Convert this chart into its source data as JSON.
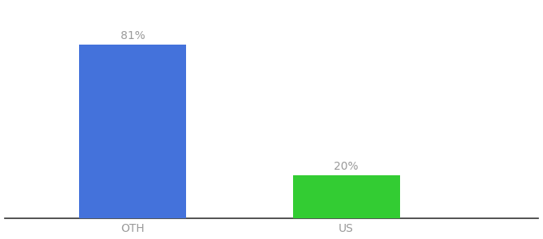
{
  "categories": [
    "OTH",
    "US"
  ],
  "values": [
    81,
    20
  ],
  "bar_colors": [
    "#4472db",
    "#33cc33"
  ],
  "label_texts": [
    "81%",
    "20%"
  ],
  "background_color": "#ffffff",
  "ylim": [
    0,
    100
  ],
  "label_fontsize": 10,
  "tick_fontsize": 10,
  "label_color": "#999999",
  "tick_color": "#999999",
  "spine_color": "#333333",
  "x_positions": [
    1,
    2
  ],
  "bar_width": 0.5,
  "xlim": [
    0.4,
    2.9
  ]
}
